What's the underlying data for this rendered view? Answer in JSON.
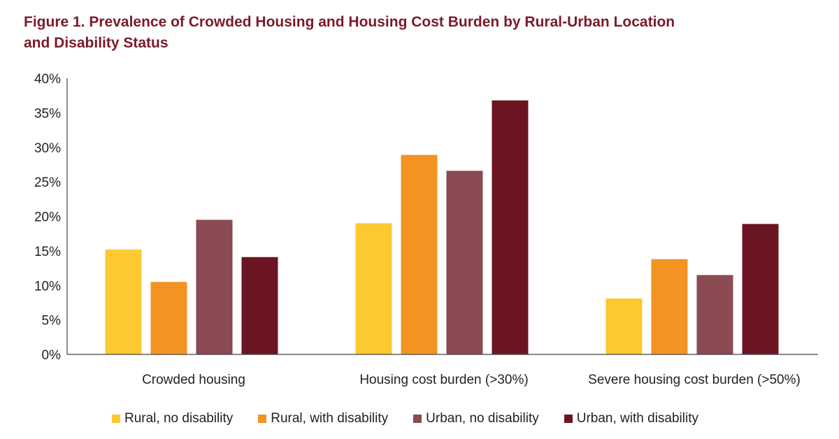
{
  "figure": {
    "title_line1": "Figure 1. Prevalence of Crowded Housing and Housing Cost Burden by Rural-Urban Location",
    "title_line2": "and Disability Status",
    "title_color": "#7b1b2a"
  },
  "chart_data": {
    "type": "bar",
    "title": "Figure 1. Prevalence of Crowded Housing and Housing Cost Burden by Rural-Urban Location and Disability Status",
    "categories": [
      "Crowded housing",
      "Housing cost burden (>30%)",
      "Severe housing cost burden (>50%)"
    ],
    "series": [
      {
        "name": "Rural, no disability",
        "color": "#fcc930",
        "values": [
          15.2,
          19.0,
          8.1
        ]
      },
      {
        "name": "Rural, with disability",
        "color": "#f39322",
        "values": [
          10.5,
          28.9,
          13.8
        ]
      },
      {
        "name": "Urban, no disability",
        "color": "#8a4b53",
        "values": [
          19.5,
          26.6,
          11.5
        ]
      },
      {
        "name": "Urban, with disability",
        "color": "#6b1522",
        "values": [
          14.1,
          36.8,
          18.9
        ]
      }
    ],
    "yticks": [
      "0%",
      "5%",
      "10%",
      "15%",
      "20%",
      "25%",
      "30%",
      "35%",
      "40%"
    ],
    "ylim": [
      0,
      40
    ],
    "xlabel": "",
    "ylabel": "",
    "legend_position": "bottom"
  }
}
